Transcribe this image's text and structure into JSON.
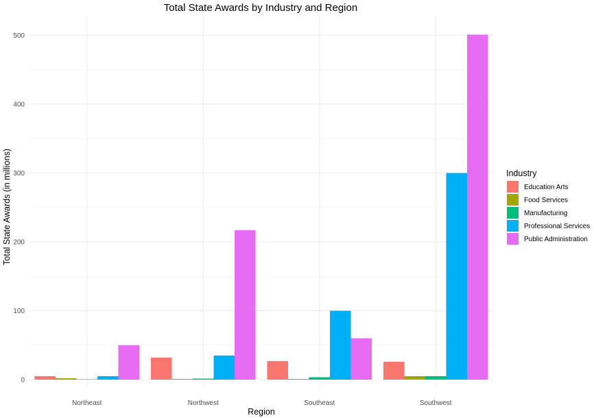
{
  "chart_data": {
    "type": "bar",
    "title": "Total State Awards by Industry and Region",
    "xlabel": "Region",
    "ylabel": "Total State Awards (in millions)",
    "categories": [
      "Northeast",
      "Northwest",
      "Southeast",
      "Southwest"
    ],
    "ylim": [
      0,
      520
    ],
    "yticks": [
      "0",
      "100",
      "200",
      "300",
      "400",
      "500"
    ],
    "grid": true,
    "legend_title": "Industry",
    "legend_position": "right",
    "series": [
      {
        "name": "Education Arts",
        "color": "#F8766D",
        "values": [
          5,
          32,
          27,
          26
        ]
      },
      {
        "name": "Food Services",
        "color": "#A3A500",
        "values": [
          2,
          1,
          1,
          5
        ]
      },
      {
        "name": "Manufacturing",
        "color": "#00BF7D",
        "values": [
          0.5,
          1.5,
          3.5,
          5
        ]
      },
      {
        "name": "Professional Services",
        "color": "#00B0F6",
        "values": [
          5,
          35,
          100,
          300
        ]
      },
      {
        "name": "Public Administration",
        "color": "#E76BF3",
        "values": [
          50,
          217,
          60,
          501
        ]
      }
    ]
  }
}
